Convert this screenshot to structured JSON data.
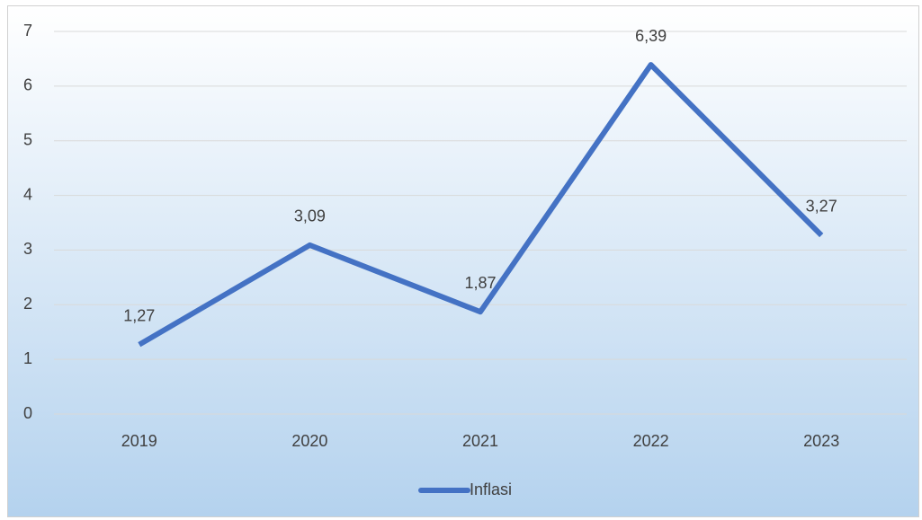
{
  "chart_data": {
    "type": "line",
    "categories": [
      "2019",
      "2020",
      "2021",
      "2022",
      "2023"
    ],
    "series": [
      {
        "name": "Inflasi",
        "color": "#4472c4",
        "values": [
          1.27,
          3.09,
          1.87,
          6.39,
          3.27
        ],
        "value_labels": [
          "1,27",
          "3,09",
          "1,87",
          "6,39",
          "3,27"
        ]
      }
    ],
    "ylim": [
      0,
      7
    ],
    "yticks": [
      0,
      1,
      2,
      3,
      4,
      5,
      6,
      7
    ],
    "grid": true,
    "legend": "bottom"
  }
}
